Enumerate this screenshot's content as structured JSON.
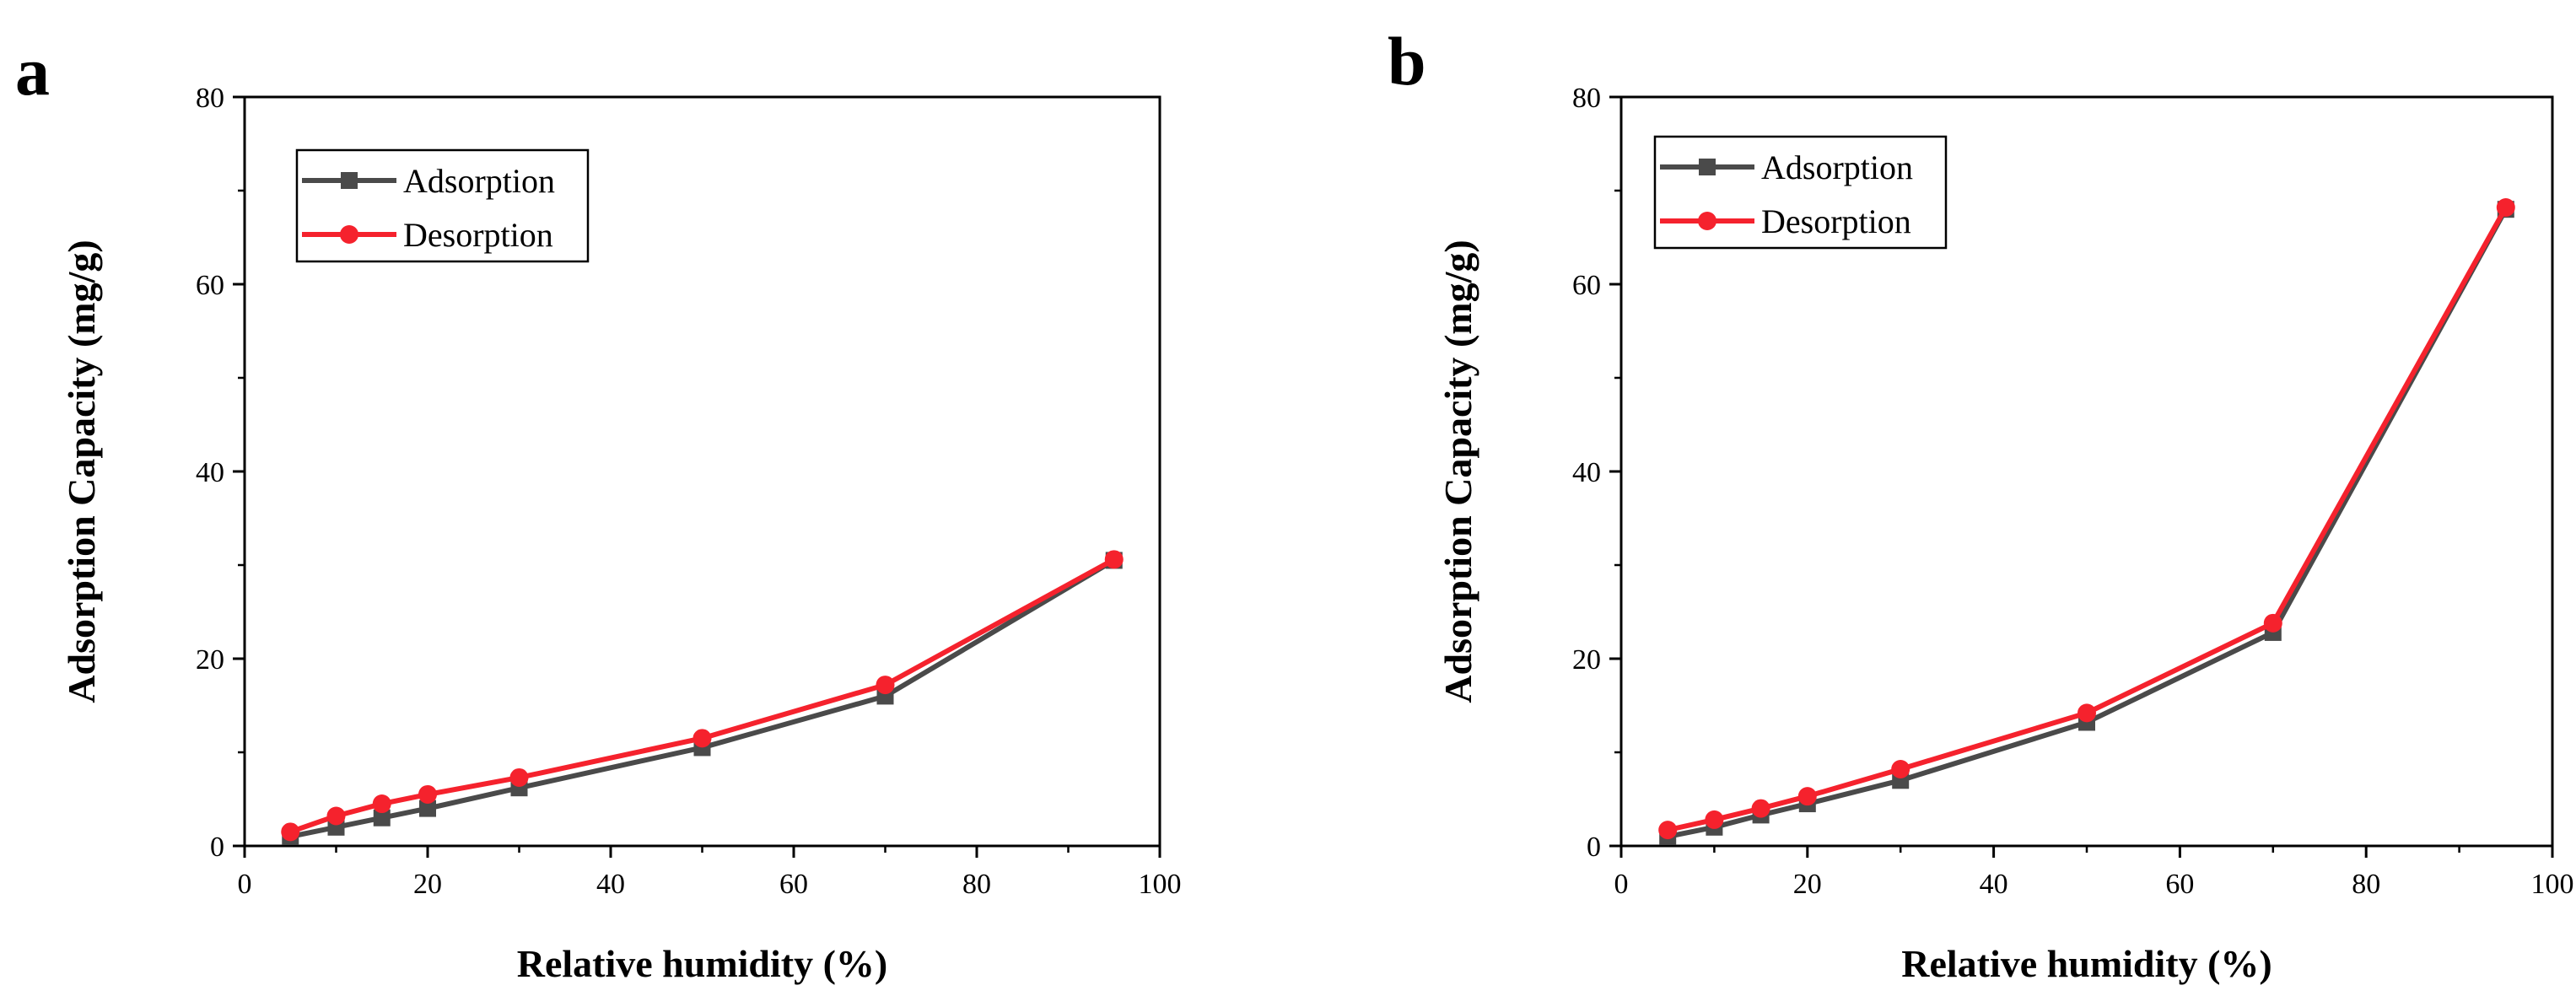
{
  "chart_data": [
    {
      "panel": "a",
      "type": "line",
      "xlabel": "Relative humidity (%)",
      "ylabel": "Adsorption Capacity (mg/g)",
      "xlim": [
        0,
        100
      ],
      "ylim": [
        0,
        80
      ],
      "xticks": [
        0,
        20,
        40,
        60,
        80,
        100
      ],
      "yticks": [
        0,
        20,
        40,
        60,
        80
      ],
      "legend_position": "top-left",
      "series": [
        {
          "name": "Adsorption",
          "color": "#4a4a4a",
          "marker": "square",
          "x": [
            5,
            10,
            15,
            20,
            30,
            50,
            70,
            95
          ],
          "y": [
            1.0,
            2.0,
            3.0,
            4.0,
            6.2,
            10.5,
            16.0,
            30.5
          ]
        },
        {
          "name": "Desorption",
          "color": "#f5222d",
          "marker": "circle",
          "x": [
            5,
            10,
            15,
            20,
            30,
            50,
            70,
            95
          ],
          "y": [
            1.5,
            3.2,
            4.5,
            5.5,
            7.3,
            11.5,
            17.2,
            30.6
          ]
        }
      ]
    },
    {
      "panel": "b",
      "type": "line",
      "xlabel": "Relative humidity (%)",
      "ylabel": "Adsorption Capacity (mg/g)",
      "xlim": [
        0,
        100
      ],
      "ylim": [
        0,
        80
      ],
      "xticks": [
        0,
        20,
        40,
        60,
        80,
        100
      ],
      "yticks": [
        0,
        20,
        40,
        60,
        80
      ],
      "legend_position": "top-left",
      "series": [
        {
          "name": "Adsorption",
          "color": "#4a4a4a",
          "marker": "square",
          "x": [
            5,
            10,
            15,
            20,
            30,
            50,
            70,
            95
          ],
          "y": [
            1.0,
            2.0,
            3.3,
            4.5,
            7.0,
            13.2,
            22.8,
            68.0
          ]
        },
        {
          "name": "Desorption",
          "color": "#f5222d",
          "marker": "circle",
          "x": [
            5,
            10,
            15,
            20,
            30,
            50,
            70,
            95
          ],
          "y": [
            1.7,
            2.8,
            4.0,
            5.3,
            8.2,
            14.2,
            23.8,
            68.2
          ]
        }
      ]
    }
  ]
}
